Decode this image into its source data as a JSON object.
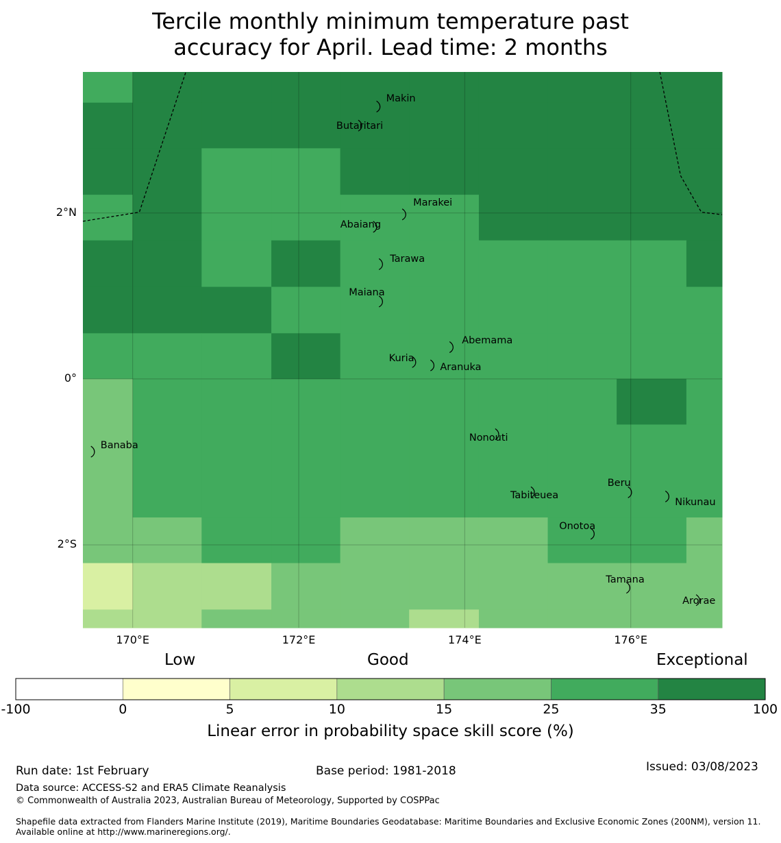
{
  "title": {
    "line1": "Tercile monthly minimum temperature past",
    "line2": "accuracy for April. Lead time: 2 months"
  },
  "map": {
    "lon_range": [
      169.4,
      177.1
    ],
    "lat_range": [
      -3.0,
      3.7
    ],
    "lon_ticks": [
      {
        "value": 170,
        "label": "170°E"
      },
      {
        "value": 172,
        "label": "172°E"
      },
      {
        "value": 174,
        "label": "174°E"
      },
      {
        "value": 176,
        "label": "176°E"
      }
    ],
    "lat_ticks": [
      {
        "value": 2,
        "label": "2°N"
      },
      {
        "value": 0,
        "label": "0°"
      },
      {
        "value": -2,
        "label": "2°S"
      }
    ],
    "level_colors": [
      "#ffffff",
      "#ffffcc",
      "#d9f0a3",
      "#addd8e",
      "#78c679",
      "#41ab5d",
      "#238443"
    ],
    "grid_lon_edges": [
      169.4,
      170.0,
      170.83,
      171.67,
      172.5,
      173.33,
      174.17,
      175.0,
      175.83,
      176.67,
      177.1
    ],
    "grid_lat_edges": [
      3.7,
      3.33,
      2.78,
      2.22,
      1.67,
      1.11,
      0.55,
      0.0,
      -0.55,
      -1.67,
      -2.22,
      -2.78,
      -3.33
    ],
    "grid_rows": [
      [
        5,
        6,
        6,
        6,
        6,
        6,
        6,
        6,
        6,
        6
      ],
      [
        6,
        6,
        6,
        6,
        6,
        6,
        6,
        6,
        6,
        6
      ],
      [
        6,
        6,
        5,
        5,
        6,
        6,
        6,
        6,
        6,
        6
      ],
      [
        5,
        6,
        5,
        5,
        5,
        5,
        6,
        6,
        6,
        6
      ],
      [
        6,
        6,
        5,
        6,
        5,
        5,
        5,
        5,
        5,
        6
      ],
      [
        6,
        6,
        6,
        5,
        5,
        5,
        5,
        5,
        5,
        5
      ],
      [
        5,
        5,
        5,
        6,
        5,
        5,
        5,
        5,
        5,
        5
      ],
      [
        4,
        5,
        5,
        5,
        5,
        5,
        5,
        5,
        6,
        5
      ],
      [
        4,
        5,
        5,
        5,
        5,
        5,
        5,
        5,
        5,
        5
      ],
      [
        4,
        4,
        5,
        5,
        4,
        4,
        4,
        5,
        5,
        4
      ],
      [
        2,
        3,
        3,
        4,
        4,
        4,
        4,
        4,
        4,
        4
      ],
      [
        3,
        3,
        4,
        4,
        4,
        3,
        4,
        4,
        4,
        4
      ]
    ],
    "islands": [
      {
        "name": "Makin",
        "lon": 172.97,
        "lat": 3.3
      },
      {
        "name": "Butaritari",
        "lon": 172.75,
        "lat": 3.07
      },
      {
        "name": "Marakei",
        "lon": 173.28,
        "lat": 2.0
      },
      {
        "name": "Abaiang",
        "lon": 172.93,
        "lat": 1.85
      },
      {
        "name": "Tarawa",
        "lon": 173.0,
        "lat": 1.4
      },
      {
        "name": "Maiana",
        "lon": 173.0,
        "lat": 0.95
      },
      {
        "name": "Abemama",
        "lon": 173.85,
        "lat": 0.4
      },
      {
        "name": "Kuria",
        "lon": 173.4,
        "lat": 0.22
      },
      {
        "name": "Aranuka",
        "lon": 173.62,
        "lat": 0.18
      },
      {
        "name": "Nonouti",
        "lon": 174.4,
        "lat": -0.65
      },
      {
        "name": "Banaba",
        "lon": 169.53,
        "lat": -0.86
      },
      {
        "name": "Tabiteuea",
        "lon": 174.83,
        "lat": -1.35
      },
      {
        "name": "Beru",
        "lon": 176.0,
        "lat": -1.35
      },
      {
        "name": "Nikunau",
        "lon": 176.45,
        "lat": -1.4
      },
      {
        "name": "Onotoa",
        "lon": 175.55,
        "lat": -1.85
      },
      {
        "name": "Tamana",
        "lon": 175.98,
        "lat": -2.5
      },
      {
        "name": "Arorae",
        "lon": 176.82,
        "lat": -2.65
      }
    ],
    "eez_west": [
      [
        169.4,
        1.9
      ],
      [
        170.08,
        2.01
      ],
      [
        170.64,
        3.7
      ]
    ],
    "eez_east": [
      [
        176.35,
        3.7
      ],
      [
        176.6,
        2.45
      ],
      [
        176.85,
        2.01
      ],
      [
        177.1,
        1.98
      ]
    ]
  },
  "colorbar": {
    "categories": [
      "Low",
      "Good",
      "Exceptional"
    ],
    "tick_labels": [
      "-100",
      "0",
      "5",
      "10",
      "15",
      "25",
      "35",
      "100"
    ],
    "colors": [
      "#ffffff",
      "#ffffcc",
      "#d9f0a3",
      "#addd8e",
      "#78c679",
      "#41ab5d",
      "#238443"
    ],
    "label": "Linear error in probability space skill score (%)"
  },
  "footer": {
    "run_date": "Run date: 1st February",
    "base_period": "Base period: 1981-2018",
    "issued": "Issued: 03/08/2023",
    "data_source": "Data source: ACCESS-S2 and ERA5 Climate Reanalysis",
    "copyright": "© Commonwealth of Australia 2023, Australian Bureau of Meteorology, Supported by COSPPac",
    "shapefile": "Shapefile data extracted from Flanders Marine Institute (2019), Maritime Boundaries Geodatabase: Maritime Boundaries and Exclusive Economic Zones (200NM), version 11. Available online at http://www.marineregions.org/."
  }
}
